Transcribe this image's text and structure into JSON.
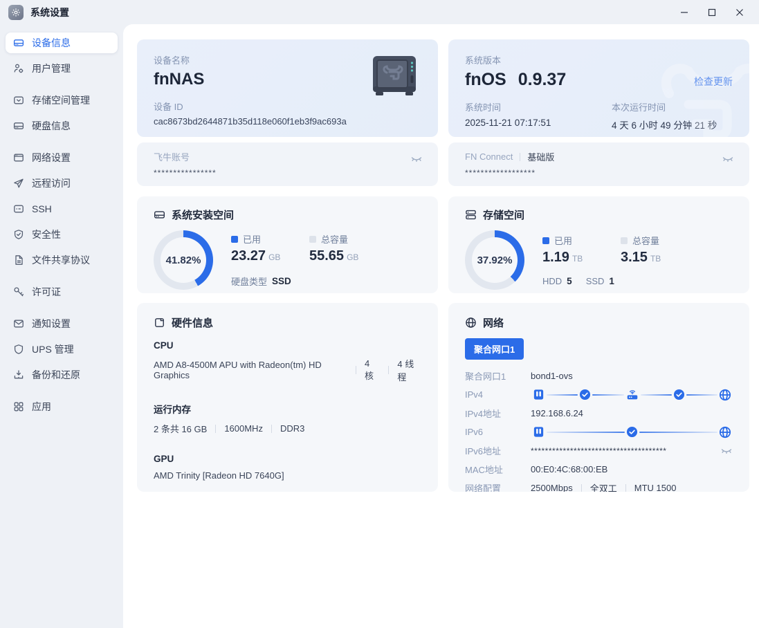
{
  "window": {
    "title": "系统设置"
  },
  "colors": {
    "accent": "#2b6ce8",
    "donut_track": "#e2e7ef"
  },
  "sidebar": {
    "groups": [
      {
        "items": [
          {
            "icon": "device-info",
            "label": "设备信息",
            "active": true
          },
          {
            "icon": "user-management",
            "label": "用户管理",
            "active": false
          }
        ]
      },
      {
        "items": [
          {
            "icon": "storage-management",
            "label": "存储空间管理",
            "active": false
          },
          {
            "icon": "disk-info",
            "label": "硬盘信息",
            "active": false
          }
        ]
      },
      {
        "items": [
          {
            "icon": "network-settings",
            "label": "网络设置",
            "active": false
          },
          {
            "icon": "remote-access",
            "label": "远程访问",
            "active": false
          },
          {
            "icon": "ssh",
            "label": "SSH",
            "active": false
          },
          {
            "icon": "security",
            "label": "安全性",
            "active": false
          },
          {
            "icon": "file-sharing",
            "label": "文件共享协议",
            "active": false
          }
        ]
      },
      {
        "items": [
          {
            "icon": "license",
            "label": "许可证",
            "active": false
          }
        ]
      },
      {
        "items": [
          {
            "icon": "notification",
            "label": "通知设置",
            "active": false
          },
          {
            "icon": "ups",
            "label": "UPS 管理",
            "active": false
          },
          {
            "icon": "backup",
            "label": "备份和还原",
            "active": false
          }
        ]
      },
      {
        "items": [
          {
            "icon": "apps",
            "label": "应用",
            "active": false
          }
        ]
      }
    ]
  },
  "device_card": {
    "name_label": "设备名称",
    "name": "fnNAS",
    "id_label": "设备 ID",
    "id": "cac8673bd2644871b35d118e060f1eb3f9ac693a"
  },
  "version_card": {
    "label": "系统版本",
    "os_name": "fnOS",
    "version": "0.9.37",
    "check_update": "检查更新",
    "time_label": "系统时间",
    "time": "2025-11-21 07:17:51",
    "uptime_label": "本次运行时间",
    "uptime": "4 天 6 小时 49 分钟 21 秒"
  },
  "account_card": {
    "label": "飞牛账号",
    "masked": "****************"
  },
  "connect_card": {
    "label": "FN Connect",
    "badge": "基础版",
    "masked": "******************"
  },
  "system_space_card": {
    "title": "系统安装空间",
    "percent": "41.82%",
    "percent_value": 41.82,
    "used_label": "已用",
    "used": "23.27",
    "used_unit": "GB",
    "total_label": "总容量",
    "total": "55.65",
    "total_unit": "GB",
    "disk_type_label": "硬盘类型",
    "disk_type": "SSD"
  },
  "storage_space_card": {
    "title": "存储空间",
    "percent": "37.92%",
    "percent_value": 37.92,
    "used_label": "已用",
    "used": "1.19",
    "used_unit": "TB",
    "total_label": "总容量",
    "total": "3.15",
    "total_unit": "TB",
    "hdd_label": "HDD",
    "hdd_count": "5",
    "ssd_label": "SSD",
    "ssd_count": "1"
  },
  "hardware_card": {
    "title": "硬件信息",
    "cpu_label": "CPU",
    "cpu": "AMD A8-4500M APU with Radeon(tm) HD Graphics",
    "cpu_cores": "4 核",
    "cpu_threads": "4 线程",
    "ram_label": "运行内存",
    "ram": "2 条共 16 GB",
    "ram_freq": "1600MHz",
    "ram_type": "DDR3",
    "gpu_label": "GPU",
    "gpu": "AMD Trinity [Radeon HD 7640G]"
  },
  "network_card": {
    "title": "网络",
    "port_button": "聚合网口1",
    "port_label": "聚合网口1",
    "port_value": "bond1-ovs",
    "ipv4_label": "IPv4",
    "ipv4_addr_label": "IPv4地址",
    "ipv4_addr": "192.168.6.24",
    "ipv6_label": "IPv6",
    "ipv6_addr_label": "IPv6地址",
    "ipv6_masked": "**************************************",
    "mac_label": "MAC地址",
    "mac": "00:E0:4C:68:00:EB",
    "config_label": "网络配置",
    "speed": "2500Mbps",
    "duplex": "全双工",
    "mtu": "MTU 1500"
  }
}
